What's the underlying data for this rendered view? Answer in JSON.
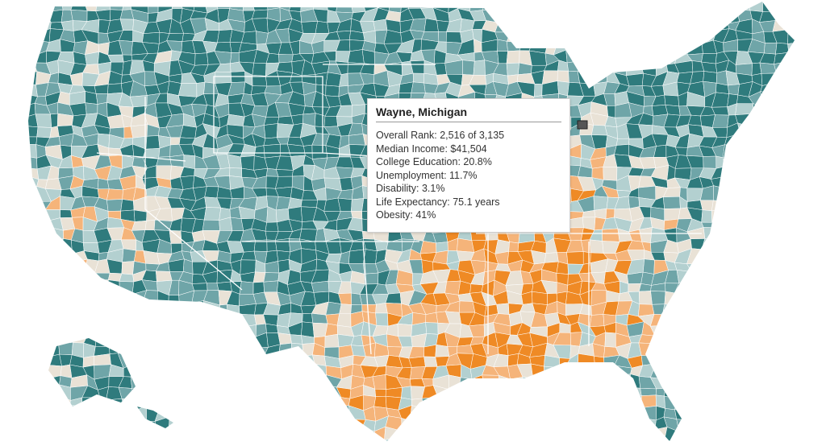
{
  "tooltip": {
    "title": "Wayne, Michigan",
    "rows": [
      "Overall Rank: 2,516 of 3,135",
      "Median Income: $41,504",
      "College Education: 20.8%",
      "Unemployment: 11.7%",
      "Disability: 3.1%",
      "Life Expectancy: 75.1 years",
      "Obesity: 41%"
    ]
  }
}
